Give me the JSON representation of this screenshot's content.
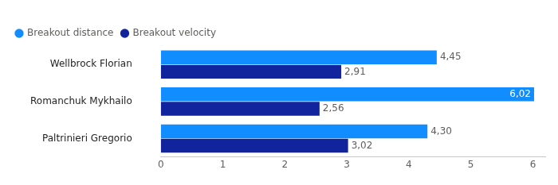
{
  "chart_data": {
    "type": "bar",
    "orientation": "horizontal",
    "categories": [
      "Wellbrock Florian",
      "Romanchuk Mykhailo",
      "Paltrinieri Gregorio"
    ],
    "series": [
      {
        "name": "Breakout distance",
        "color": "#118dff",
        "values": [
          4.45,
          6.02,
          4.3
        ],
        "value_labels": [
          "4,45",
          "6,02",
          "4,30"
        ]
      },
      {
        "name": "Breakout velocity",
        "color": "#12239e",
        "values": [
          2.91,
          2.56,
          3.02
        ],
        "value_labels": [
          "2,91",
          "2,56",
          "3,02"
        ]
      }
    ],
    "xlim": [
      0,
      6.2
    ],
    "xticks": [
      0,
      1,
      2,
      3,
      4,
      5,
      6
    ],
    "grid": false,
    "legend": "top-left",
    "data_labels": true
  }
}
